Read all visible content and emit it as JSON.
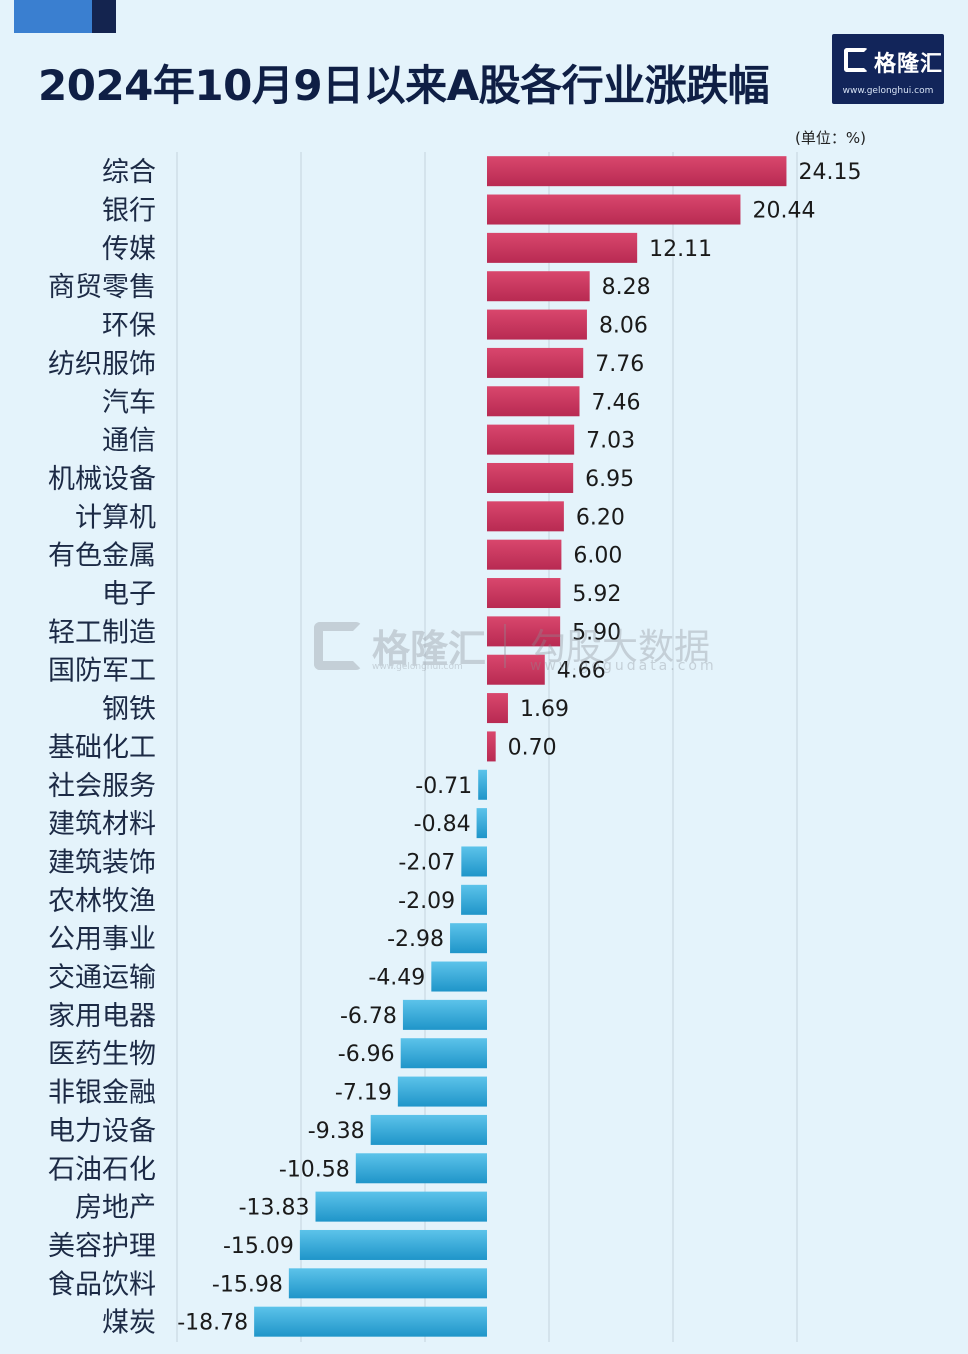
{
  "title": "2024年10月9日以来A股各行业涨跌幅",
  "unit_label": "(单位：%)",
  "logo": {
    "name": "格隆汇",
    "url": "www.gelonghui.com"
  },
  "watermark": {
    "name": "格隆汇",
    "url": "www.gelonghui.com",
    "name2": "勾股大数据",
    "url2": "www.gogudata.com"
  },
  "colors": {
    "positive": "#c8345e",
    "negative": "#2ea6d6",
    "background": "#e4f3fb",
    "title": "#0f1f45"
  },
  "chart_data": {
    "type": "bar",
    "orientation": "horizontal",
    "title": "2024年10月9日以来A股各行业涨跌幅",
    "unit": "%",
    "categories": [
      "综合",
      "银行",
      "传媒",
      "商贸零售",
      "环保",
      "纺织服饰",
      "汽车",
      "通信",
      "机械设备",
      "计算机",
      "有色金属",
      "电子",
      "轻工制造",
      "国防军工",
      "钢铁",
      "基础化工",
      "社会服务",
      "建筑材料",
      "建筑装饰",
      "农林牧渔",
      "公用事业",
      "交通运输",
      "家用电器",
      "医药生物",
      "非银金融",
      "电力设备",
      "石油石化",
      "房地产",
      "美容护理",
      "食品饮料",
      "煤炭"
    ],
    "values": [
      24.15,
      20.44,
      12.11,
      8.28,
      8.06,
      7.76,
      7.46,
      7.03,
      6.95,
      6.2,
      6.0,
      5.92,
      5.9,
      4.66,
      1.69,
      0.7,
      -0.71,
      -0.84,
      -2.07,
      -2.09,
      -2.98,
      -4.49,
      -6.78,
      -6.96,
      -7.19,
      -9.38,
      -10.58,
      -13.83,
      -15.09,
      -15.98,
      -18.78
    ],
    "labels": [
      "24.15",
      "20.44",
      "12.11",
      "8.28",
      "8.06",
      "7.76",
      "7.46",
      "7.03",
      "6.95",
      "6.20",
      "6.00",
      "5.92",
      "5.90",
      "4.66",
      "1.69",
      "0.70",
      "-0.71",
      "-0.84",
      "-2.07",
      "-2.09",
      "-2.98",
      "-4.49",
      "-6.78",
      "-6.96",
      "-7.19",
      "-9.38",
      "-10.58",
      "-13.83",
      "-15.09",
      "-15.98",
      "-18.78"
    ],
    "xlim": [
      -20,
      30
    ],
    "gridlines": [
      -25,
      -15,
      -5,
      5,
      15,
      25
    ],
    "grid": true,
    "legend": false
  }
}
